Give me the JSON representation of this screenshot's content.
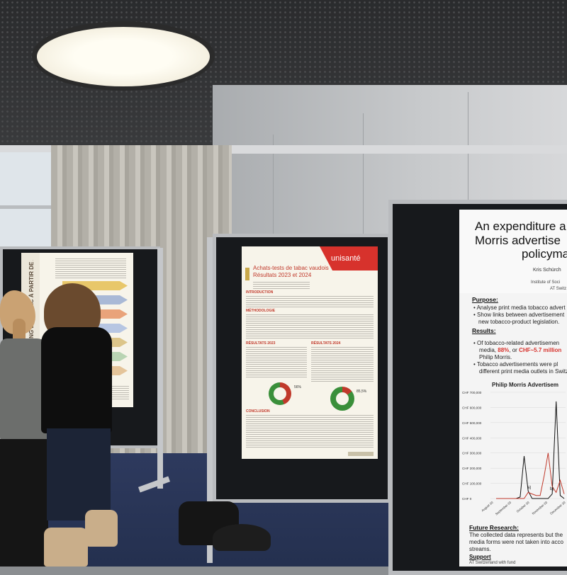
{
  "poster_left": {
    "side_title": "STRATÉGIES MARKETING DU TABAC À PARTIR DE 2025"
  },
  "poster_center": {
    "brand": "unisanté",
    "title_line1": "Achats-tests de tabac vaudois",
    "title_line2": "Résultats 2023 et 2024",
    "section_intro": "INTRODUCTION",
    "section_method": "MÉTHODOLOGIE",
    "results_2023": "RÉSULTATS 2023",
    "results_2024": "RÉSULTATS 2024",
    "section_conclusion": "CONCLUSION",
    "stat_2023": "56%",
    "stat_2024": "85,5%"
  },
  "poster_right": {
    "title_line1": "An expenditure a",
    "title_line2": "Morris advertise",
    "title_line3": "policyma",
    "authors": "Kris Schürch",
    "affiliation1": "Institute of Soci",
    "affiliation2": "AT Switz",
    "purpose_heading": "Purpose:",
    "purpose_1": "Analyse print media tobacco advert",
    "purpose_2a": "Show links between advertisement",
    "purpose_2b": "new tobacco-product legislation.",
    "results_heading": "Results:",
    "results_1a": "Of tobacco-related advertisemen",
    "results_1b_pre": "media,",
    "results_1b_pct": "88%",
    "results_1b_mid": ", or",
    "results_1b_chf": "CHF~5.7 million",
    "results_1c": "Philip Morris.",
    "results_2a": "Tobacco advertisements were pl",
    "results_2b": "different print media outlets in Switz",
    "future_heading": "Future Research:",
    "future_1": "The collected data represents but the",
    "future_2": "media forms were not taken into acco",
    "future_3": "streams.",
    "support_heading": "Support",
    "support_1": "AT Switzerland with fund"
  },
  "chart_data": {
    "type": "line",
    "title": "Philip Morris Advertisem",
    "yticks": [
      "CHF 700,000",
      "CHF 600,000",
      "CHF 500,000",
      "CHF 400,000",
      "CHF 300,000",
      "CHF 200,000",
      "CHF 100,000",
      "CHF 0"
    ],
    "xticks": [
      "August 20",
      "September 20",
      "October 20",
      "November 20",
      "December 20"
    ],
    "annotations": [
      "a)",
      "b)"
    ],
    "ylim": [
      0,
      700000
    ],
    "series": [
      {
        "color": "#111111",
        "values": [
          0,
          0,
          0,
          0,
          0,
          0,
          10000,
          280000,
          50000,
          0,
          0,
          0,
          0,
          0,
          30000,
          640000,
          20000,
          0
        ]
      },
      {
        "color": "#c0392b",
        "values": [
          0,
          0,
          0,
          0,
          0,
          0,
          0,
          0,
          40000,
          30000,
          20000,
          20000,
          150000,
          300000,
          80000,
          40000,
          120000,
          30000
        ]
      }
    ]
  }
}
